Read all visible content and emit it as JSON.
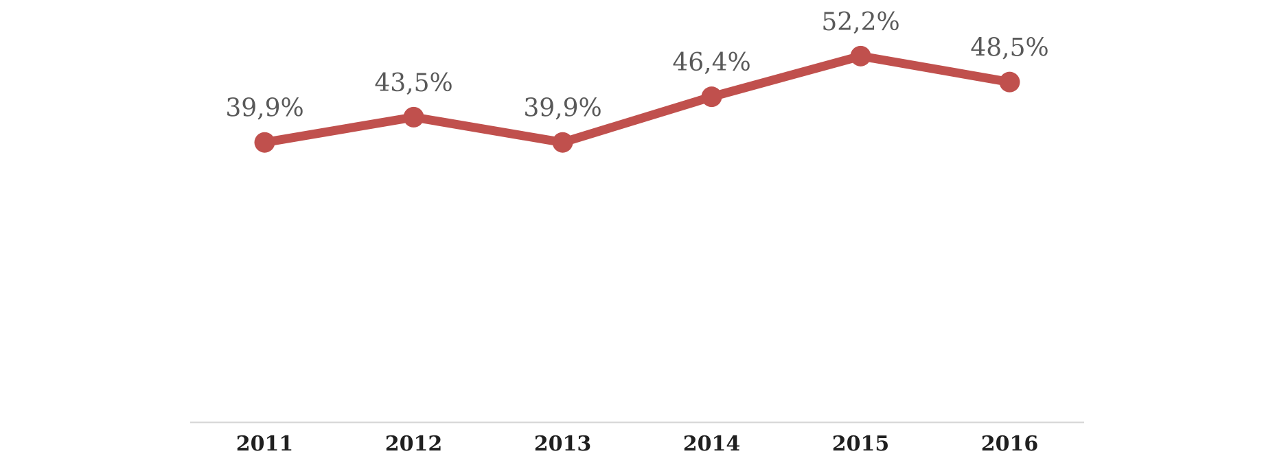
{
  "chart_data": {
    "type": "line",
    "categories": [
      "2011",
      "2012",
      "2013",
      "2014",
      "2015",
      "2016"
    ],
    "values": [
      39.9,
      43.5,
      39.9,
      46.4,
      52.2,
      48.5
    ],
    "data_labels": [
      "39,9%",
      "43,5%",
      "39,9%",
      "46,4%",
      "52,2%",
      "48,5%"
    ],
    "title": "",
    "xlabel": "",
    "ylabel": "",
    "ylim": [
      0,
      60
    ],
    "grid": false,
    "legend": false,
    "colors": {
      "line": "#c0504d",
      "marker": "#c0504d",
      "data_label": "#595959",
      "tick_label": "#1f1f1f",
      "axis_line": "#d9d9d9"
    }
  }
}
